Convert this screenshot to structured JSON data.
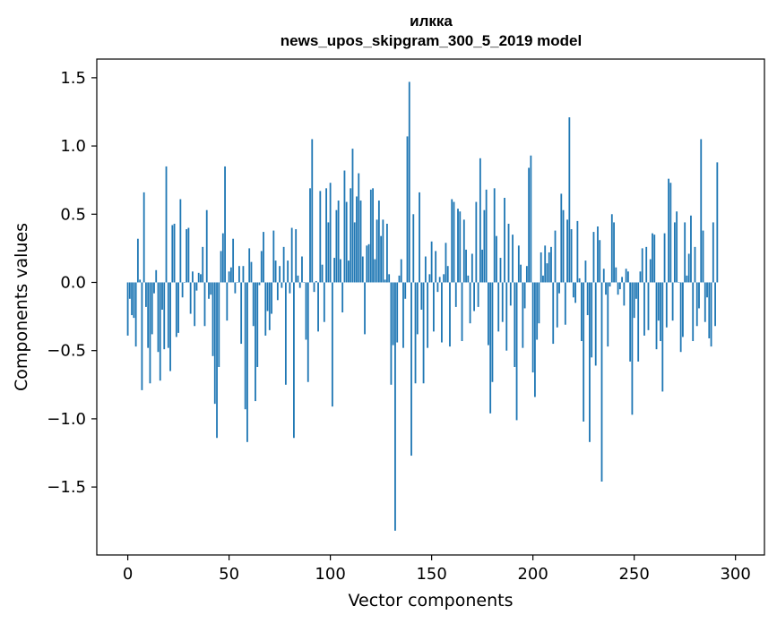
{
  "chart_data": {
    "type": "bar",
    "title": "илкка",
    "subtitle": "news_upos_skipgram_300_5_2019 model",
    "xlabel": "Vector components",
    "ylabel": "Components values",
    "xlim": [
      -15.3,
      314.3
    ],
    "ylim": [
      -1.998,
      1.637
    ],
    "xticks": [
      0,
      50,
      100,
      150,
      200,
      250,
      300
    ],
    "yticks": [
      -1.5,
      -1.0,
      -0.5,
      0.0,
      0.5,
      1.0,
      1.5
    ],
    "ytick_labels": [
      "−1.5",
      "−1.0",
      "−0.5",
      "0.0",
      "0.5",
      "1.0",
      "1.5"
    ],
    "bar_color": "#1f77b4",
    "values": [
      -0.39,
      -0.12,
      -0.24,
      -0.26,
      -0.47,
      0.32,
      0.02,
      -0.79,
      0.66,
      -0.18,
      -0.48,
      -0.74,
      -0.38,
      -0.08,
      0.09,
      -0.51,
      -0.72,
      -0.2,
      -0.49,
      0.85,
      -0.48,
      -0.65,
      0.42,
      0.43,
      -0.4,
      -0.37,
      0.61,
      -0.11,
      0.0,
      0.39,
      0.4,
      -0.23,
      0.08,
      -0.32,
      -0.06,
      0.07,
      0.06,
      0.26,
      -0.32,
      0.53,
      -0.12,
      -0.09,
      -0.54,
      -0.89,
      -1.14,
      -0.62,
      0.23,
      0.36,
      0.85,
      -0.28,
      0.08,
      0.11,
      0.32,
      -0.08,
      0.0,
      0.12,
      -0.45,
      0.12,
      -0.93,
      -1.17,
      0.25,
      0.15,
      -0.32,
      -0.87,
      -0.62,
      -0.02,
      0.23,
      0.37,
      -0.39,
      -0.21,
      -0.35,
      -0.23,
      0.38,
      0.16,
      -0.13,
      0.12,
      -0.04,
      0.26,
      -0.75,
      0.16,
      -0.08,
      0.4,
      -1.14,
      0.39,
      0.05,
      -0.04,
      0.19,
      0.0,
      -0.42,
      -0.73,
      0.69,
      1.05,
      -0.07,
      0.01,
      -0.36,
      0.67,
      0.13,
      -0.29,
      0.69,
      0.44,
      0.73,
      -0.91,
      0.18,
      0.53,
      0.6,
      0.17,
      -0.22,
      0.82,
      0.59,
      0.16,
      0.69,
      0.98,
      0.44,
      0.63,
      0.8,
      0.6,
      0.19,
      -0.38,
      0.27,
      0.28,
      0.68,
      0.69,
      0.17,
      0.46,
      0.6,
      0.34,
      0.46,
      0.02,
      0.43,
      0.06,
      -0.75,
      -0.46,
      -1.82,
      -0.44,
      0.05,
      0.17,
      -0.48,
      -0.12,
      1.07,
      1.47,
      -1.27,
      0.5,
      -0.74,
      -0.38,
      0.66,
      -0.2,
      -0.74,
      0.19,
      -0.48,
      0.06,
      0.3,
      -0.36,
      0.23,
      -0.07,
      0.04,
      -0.44,
      0.06,
      0.29,
      0.12,
      -0.47,
      0.61,
      0.59,
      -0.18,
      0.54,
      0.52,
      -0.43,
      0.46,
      0.24,
      0.05,
      -0.3,
      0.21,
      -0.21,
      0.59,
      -0.18,
      0.91,
      0.24,
      0.53,
      0.68,
      -0.46,
      -0.96,
      -0.73,
      0.69,
      0.34,
      -0.36,
      0.18,
      -0.29,
      0.62,
      -0.5,
      0.43,
      -0.17,
      0.35,
      -0.62,
      -1.01,
      0.27,
      0.13,
      -0.48,
      -0.19,
      0.12,
      0.84,
      0.93,
      -0.66,
      -0.84,
      -0.42,
      -0.3,
      0.22,
      0.05,
      0.27,
      0.14,
      0.22,
      0.26,
      -0.45,
      0.38,
      -0.33,
      -0.08,
      0.65,
      0.53,
      -0.31,
      0.46,
      1.21,
      0.39,
      -0.11,
      -0.15,
      0.45,
      0.03,
      -0.43,
      -1.02,
      0.16,
      -0.24,
      -1.17,
      -0.55,
      0.37,
      -0.61,
      0.41,
      0.31,
      -1.46,
      0.1,
      -0.09,
      -0.47,
      -0.03,
      0.5,
      0.44,
      0.11,
      -0.09,
      -0.05,
      0.04,
      -0.17,
      0.1,
      0.08,
      -0.58,
      -0.97,
      -0.26,
      -0.12,
      -0.58,
      0.08,
      0.25,
      -0.39,
      0.26,
      -0.35,
      0.17,
      0.36,
      0.35,
      -0.49,
      -0.28,
      -0.43,
      -0.8,
      0.36,
      -0.33,
      0.76,
      0.73,
      -0.28,
      0.44,
      0.52,
      0.0,
      -0.51,
      -0.4,
      0.44,
      0.05,
      0.21,
      0.49,
      -0.43,
      0.26,
      -0.32,
      -0.19,
      1.05,
      0.38,
      -0.29,
      -0.11,
      -0.41,
      -0.47,
      0.44,
      -0.32,
      0.88
    ]
  }
}
